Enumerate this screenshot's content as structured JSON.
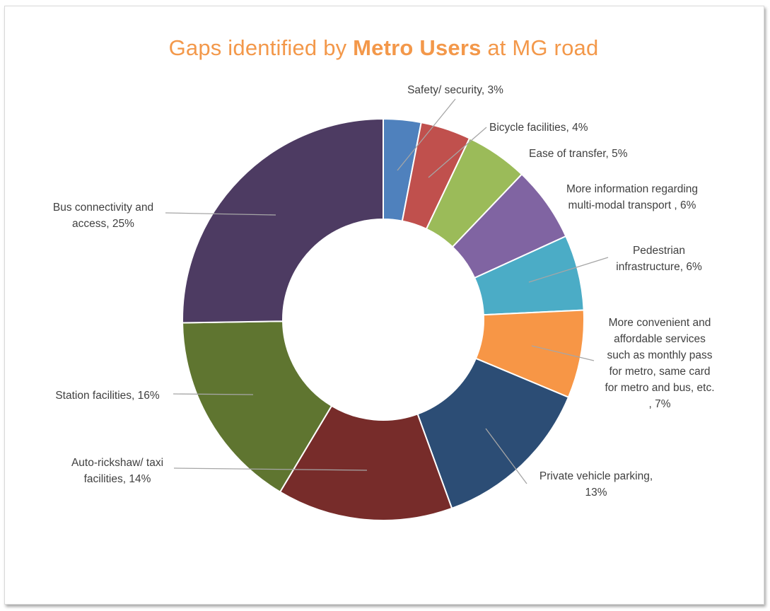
{
  "chart_data": {
    "type": "pie",
    "title": {
      "prefix": "Gaps identified by ",
      "emphasis": "Metro Users",
      "suffix": " at MG road"
    },
    "donut": true,
    "colors": {
      "title": "#f3984a",
      "leader_line": "#a6a6a6",
      "label_text": "#404040"
    },
    "slices": [
      {
        "label_lines": [
          "Safety/ security, 3%"
        ],
        "value": 3,
        "color": "#4f81bd"
      },
      {
        "label_lines": [
          "Bicycle facilities, 4%"
        ],
        "value": 4,
        "color": "#c0504d"
      },
      {
        "label_lines": [
          "Ease of transfer, 5%"
        ],
        "value": 5,
        "color": "#9bbb59"
      },
      {
        "label_lines": [
          "More information regarding",
          "multi-modal transport , 6%"
        ],
        "value": 6,
        "color": "#8064a2"
      },
      {
        "label_lines": [
          "Pedestrian",
          "infrastructure, 6%"
        ],
        "value": 6,
        "color": "#4bacc6"
      },
      {
        "label_lines": [
          "More convenient and",
          "affordable services",
          "such as monthly pass",
          "for metro, same card",
          "for metro and bus, etc.",
          ", 7%"
        ],
        "value": 7,
        "color": "#f79646"
      },
      {
        "label_lines": [
          "Private vehicle parking,",
          "13%"
        ],
        "value": 13,
        "color": "#2c4d75"
      },
      {
        "label_lines": [
          "Auto-rickshaw/ taxi",
          "facilities, 14%"
        ],
        "value": 14,
        "color": "#772c2a"
      },
      {
        "label_lines": [
          "Station facilities, 16%"
        ],
        "value": 16,
        "color": "#5f7530"
      },
      {
        "label_lines": [
          "Bus connectivity and",
          "access, 25%"
        ],
        "value": 25,
        "color": "#4d3b62"
      }
    ]
  }
}
